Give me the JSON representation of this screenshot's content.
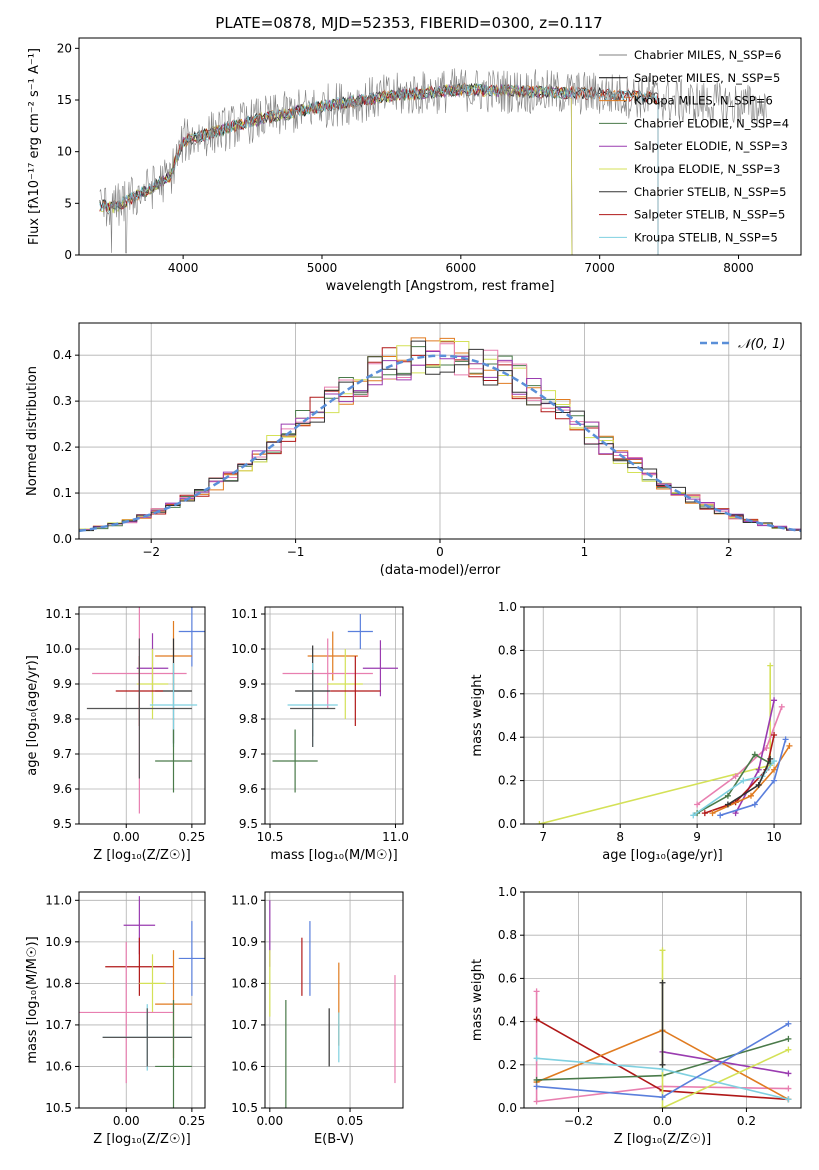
{
  "chart_data": [
    {
      "id": "spectrum",
      "type": "line",
      "title": "PLATE=0878, MJD=52353, FIBERID=0300, z=0.117",
      "xlabel": "wavelength [Angstrom, rest frame]",
      "ylabel": "Flux [fλ10⁻¹⁷ erg cm⁻² s⁻¹ A⁻¹]",
      "xlim": [
        3250,
        8450
      ],
      "ylim": [
        0,
        21
      ],
      "xticks": [
        "4000",
        "5000",
        "6000",
        "7000",
        "8000"
      ],
      "yticks": [
        "0",
        "5",
        "10",
        "15",
        "20"
      ],
      "legend_placement": "right",
      "continuum": {
        "x": [
          3400,
          3500,
          3700,
          3900,
          4000,
          4300,
          4500,
          5000,
          5500,
          6000,
          6500,
          7000,
          7400,
          7600,
          8000,
          8200
        ],
        "y": [
          4.8,
          4.6,
          6.0,
          7.5,
          11.0,
          12.2,
          13.0,
          14.4,
          15.4,
          16.0,
          15.8,
          15.6,
          15.2,
          14.8,
          14.5,
          14.3
        ]
      },
      "series": [
        {
          "name": "Chabrier MILES, N_SSP=6",
          "color": "#808080",
          "x_end": 8200
        },
        {
          "name": "Salpeter MILES, N_SSP=5",
          "color": "#000000",
          "x_end": 7420
        },
        {
          "name": "Kroupa MILES, N_SSP=6",
          "color": "#e07b20",
          "x_end": 7420
        },
        {
          "name": "Chabrier ELODIE, N_SSP=4",
          "color": "#4a7a4a",
          "x_end": 6800
        },
        {
          "name": "Salpeter ELODIE, N_SSP=3",
          "color": "#9a3cb0",
          "x_end": 6800
        },
        {
          "name": "Kroupa ELODIE, N_SSP=3",
          "color": "#d4e157",
          "x_end": 6800
        },
        {
          "name": "Chabrier STELIB, N_SSP=5",
          "color": "#333333",
          "x_end": 7420
        },
        {
          "name": "Salpeter STELIB, N_SSP=5",
          "color": "#b01818",
          "x_end": 7420
        },
        {
          "name": "Kroupa STELIB, N_SSP=5",
          "color": "#7fd0e0",
          "x_end": 7420
        }
      ]
    },
    {
      "id": "residuals",
      "type": "histogram",
      "xlabel": "(data-model)/error",
      "ylabel": "Normed distribution",
      "xlim": [
        -2.5,
        2.5
      ],
      "ylim": [
        0,
        0.47
      ],
      "xticks": [
        "−2",
        "−1",
        "0",
        "1",
        "2"
      ],
      "yticks": [
        "0.0",
        "0.1",
        "0.2",
        "0.3",
        "0.4"
      ],
      "gaussian_label": "𝒩(0, 1)",
      "legend_placement": "top-right",
      "bin_width": 0.1,
      "hist_colors": [
        "#4a7a4a",
        "#b01818",
        "#e07b20",
        "#d4e157",
        "#e87fb0",
        "#9a3cb0",
        "#333333"
      ]
    },
    {
      "id": "age-vs-z",
      "type": "scatter",
      "xlabel": "Z [log₁₀(Z/Z☉)]",
      "ylabel": "age  [log₁₀(age/yr)]",
      "xlim": [
        -0.18,
        0.3
      ],
      "ylim": [
        9.5,
        10.12
      ],
      "xticks": [
        "0.00",
        "0.25"
      ],
      "yticks": [
        "9.5",
        "9.6",
        "9.7",
        "9.8",
        "9.9",
        "10.0",
        "10.1"
      ],
      "points": [
        {
          "x": 0.25,
          "y": 10.05,
          "xerr": 0.05,
          "yerr": 0.1,
          "color": "#5a7fdc"
        },
        {
          "x": 0.18,
          "y": 9.98,
          "xerr": 0.07,
          "yerr": 0.1,
          "color": "#e07b20"
        },
        {
          "x": 0.1,
          "y": 9.945,
          "xerr": 0.06,
          "yerr": 0.1,
          "color": "#9a3cb0"
        },
        {
          "x": 0.05,
          "y": 9.93,
          "xerr": 0.18,
          "yerr": 0.4,
          "color": "#e87fb0"
        },
        {
          "x": 0.1,
          "y": 9.9,
          "xerr": 0.06,
          "yerr": 0.1,
          "color": "#d4e157"
        },
        {
          "x": 0.18,
          "y": 9.88,
          "xerr": 0.07,
          "yerr": 0.15,
          "color": "#333333"
        },
        {
          "x": 0.05,
          "y": 9.88,
          "xerr": 0.09,
          "yerr": 0.1,
          "color": "#b01818"
        },
        {
          "x": 0.18,
          "y": 9.84,
          "xerr": 0.09,
          "yerr": 0.12,
          "color": "#7fd0e0"
        },
        {
          "x": 0.05,
          "y": 9.83,
          "xerr": 0.2,
          "yerr": 0.2,
          "color": "#555555"
        },
        {
          "x": 0.18,
          "y": 9.68,
          "xerr": 0.07,
          "yerr": 0.09,
          "color": "#4a7a4a"
        }
      ]
    },
    {
      "id": "age-vs-mass",
      "type": "scatter",
      "xlabel": "mass [log₁₀(M/M☉)]",
      "ylabel": "",
      "xlim": [
        10.48,
        11.03
      ],
      "ylim": [
        9.5,
        10.12
      ],
      "xticks": [
        "10.5",
        "11.0"
      ],
      "yticks": [
        "9.5",
        "9.6",
        "9.7",
        "9.8",
        "9.9",
        "10.0",
        "10.1"
      ],
      "points": [
        {
          "x": 10.86,
          "y": 10.05,
          "xerr": 0.05,
          "yerr": 0.05,
          "color": "#5a7fdc"
        },
        {
          "x": 10.75,
          "y": 9.98,
          "xerr": 0.1,
          "yerr": 0.07,
          "color": "#e07b20"
        },
        {
          "x": 10.94,
          "y": 9.945,
          "xerr": 0.07,
          "yerr": 0.08,
          "color": "#9a3cb0"
        },
        {
          "x": 10.73,
          "y": 9.93,
          "xerr": 0.18,
          "yerr": 0.1,
          "color": "#e87fb0"
        },
        {
          "x": 10.8,
          "y": 9.9,
          "xerr": 0.07,
          "yerr": 0.1,
          "color": "#d4e157"
        },
        {
          "x": 10.67,
          "y": 9.88,
          "xerr": 0.07,
          "yerr": 0.13,
          "color": "#333333"
        },
        {
          "x": 10.84,
          "y": 9.88,
          "xerr": 0.1,
          "yerr": 0.1,
          "color": "#b01818"
        },
        {
          "x": 10.67,
          "y": 9.84,
          "xerr": 0.1,
          "yerr": 0.12,
          "color": "#7fd0e0"
        },
        {
          "x": 10.67,
          "y": 9.83,
          "xerr": 0.09,
          "yerr": 0.11,
          "color": "#555555"
        },
        {
          "x": 10.6,
          "y": 9.68,
          "xerr": 0.09,
          "yerr": 0.09,
          "color": "#4a7a4a"
        }
      ]
    },
    {
      "id": "mass-weight-vs-age",
      "type": "line",
      "xlabel": "age  [log₁₀(age/yr)]",
      "ylabel": "mass weight",
      "xlim": [
        6.75,
        10.35
      ],
      "ylim": [
        0,
        1.0
      ],
      "xticks": [
        "7",
        "8",
        "9",
        "10"
      ],
      "yticks": [
        "0.0",
        "0.2",
        "0.4",
        "0.6",
        "0.8",
        "1.0"
      ],
      "series": [
        {
          "color": "#d4e157",
          "x": [
            6.95,
            9.95,
            9.95
          ],
          "y": [
            0.0,
            0.27,
            0.73
          ]
        },
        {
          "color": "#e87fb0",
          "x": [
            9.0,
            9.5,
            9.9,
            10.1
          ],
          "y": [
            0.09,
            0.22,
            0.35,
            0.54
          ]
        },
        {
          "color": "#9a3cb0",
          "x": [
            9.5,
            9.8,
            10.0
          ],
          "y": [
            0.05,
            0.25,
            0.57
          ]
        },
        {
          "color": "#b01818",
          "x": [
            9.1,
            9.5,
            9.9,
            10.0
          ],
          "y": [
            0.05,
            0.1,
            0.25,
            0.41
          ]
        },
        {
          "color": "#e07b20",
          "x": [
            9.2,
            9.7,
            10.0,
            10.2
          ],
          "y": [
            0.05,
            0.13,
            0.25,
            0.36
          ]
        },
        {
          "color": "#4a7a4a",
          "x": [
            9.0,
            9.4,
            9.75,
            9.95
          ],
          "y": [
            0.05,
            0.13,
            0.32,
            0.28
          ]
        },
        {
          "color": "#5a7fdc",
          "x": [
            9.3,
            9.75,
            10.0,
            10.15
          ],
          "y": [
            0.04,
            0.09,
            0.2,
            0.39
          ]
        },
        {
          "color": "#7fd0e0",
          "x": [
            8.95,
            9.6,
            9.85,
            10.0
          ],
          "y": [
            0.04,
            0.2,
            0.22,
            0.29
          ]
        },
        {
          "color": "#333333",
          "x": [
            9.4,
            9.8,
            9.95
          ],
          "y": [
            0.09,
            0.18,
            0.3
          ]
        }
      ]
    },
    {
      "id": "mass-vs-z",
      "type": "scatter",
      "xlabel": "Z [log₁₀(Z/Z☉)]",
      "ylabel": "mass [log₁₀(M/M☉)]",
      "xlim": [
        -0.18,
        0.3
      ],
      "ylim": [
        10.5,
        11.02
      ],
      "xticks": [
        "0.00",
        "0.25"
      ],
      "yticks": [
        "10.5",
        "10.6",
        "10.7",
        "10.8",
        "10.9",
        "11.0"
      ],
      "points": [
        {
          "x": 0.05,
          "y": 10.94,
          "xerr": 0.06,
          "yerr": 0.07,
          "color": "#9a3cb0"
        },
        {
          "x": 0.25,
          "y": 10.86,
          "xerr": 0.05,
          "yerr": 0.09,
          "color": "#5a7fdc"
        },
        {
          "x": 0.05,
          "y": 10.84,
          "xerr": 0.13,
          "yerr": 0.07,
          "color": "#b01818"
        },
        {
          "x": 0.1,
          "y": 10.8,
          "xerr": 0.05,
          "yerr": 0.07,
          "color": "#d4e157"
        },
        {
          "x": 0.18,
          "y": 10.75,
          "xerr": 0.07,
          "yerr": 0.13,
          "color": "#e07b20"
        },
        {
          "x": 0.0,
          "y": 10.73,
          "xerr": 0.18,
          "yerr": 0.17,
          "color": "#e87fb0"
        },
        {
          "x": 0.08,
          "y": 10.67,
          "xerr": 0.17,
          "yerr": 0.08,
          "color": "#7fd0e0"
        },
        {
          "x": 0.08,
          "y": 10.67,
          "xerr": 0.17,
          "yerr": 0.07,
          "color": "#555555"
        },
        {
          "x": 0.18,
          "y": 10.6,
          "xerr": 0.07,
          "yerr": 0.16,
          "color": "#4a7a4a"
        }
      ]
    },
    {
      "id": "mass-vs-ebv",
      "type": "scatter",
      "xlabel": "E(B-V)",
      "ylabel": "",
      "xlim": [
        -0.003,
        0.083
      ],
      "ylim": [
        10.5,
        11.02
      ],
      "xticks": [
        "0.00",
        "0.05"
      ],
      "yticks": [
        "10.5",
        "10.6",
        "10.7",
        "10.8",
        "10.9",
        "11.0"
      ],
      "points": [
        {
          "x": 0.0,
          "y": 10.92,
          "yerr": 0.08,
          "color": "#9a3cb0"
        },
        {
          "x": 0.0,
          "y": 10.8,
          "yerr": 0.08,
          "color": "#d4e157"
        },
        {
          "x": 0.025,
          "y": 10.86,
          "yerr": 0.09,
          "color": "#5a7fdc"
        },
        {
          "x": 0.02,
          "y": 10.84,
          "yerr": 0.07,
          "color": "#b01818"
        },
        {
          "x": 0.043,
          "y": 10.75,
          "yerr": 0.1,
          "color": "#e07b20"
        },
        {
          "x": 0.078,
          "y": 10.69,
          "yerr": 0.13,
          "color": "#e87fb0"
        },
        {
          "x": 0.043,
          "y": 10.67,
          "yerr": 0.06,
          "color": "#7fd0e0"
        },
        {
          "x": 0.037,
          "y": 10.67,
          "yerr": 0.07,
          "color": "#333333"
        },
        {
          "x": 0.01,
          "y": 10.6,
          "yerr": 0.16,
          "color": "#4a7a4a"
        }
      ]
    },
    {
      "id": "mass-weight-vs-z",
      "type": "line",
      "xlabel": "Z [log₁₀(Z/Z☉)]",
      "ylabel": "mass weight",
      "xlim": [
        -0.33,
        0.33
      ],
      "ylim": [
        0,
        1.0
      ],
      "xticks": [
        "−0.2",
        "0.0",
        "0.2"
      ],
      "yticks": [
        "0.0",
        "0.2",
        "0.4",
        "0.6",
        "0.8",
        "1.0"
      ],
      "series": [
        {
          "color": "#e87fb0",
          "x": [
            -0.3,
            -0.3,
            0.0,
            0.3
          ],
          "y": [
            0.54,
            0.03,
            0.1,
            0.09
          ]
        },
        {
          "color": "#b01818",
          "x": [
            -0.3,
            0.0,
            0.3
          ],
          "y": [
            0.41,
            0.08,
            0.04
          ]
        },
        {
          "color": "#e07b20",
          "x": [
            -0.3,
            0.0,
            0.3
          ],
          "y": [
            0.12,
            0.36,
            0.04
          ]
        },
        {
          "color": "#4a7a4a",
          "x": [
            -0.3,
            0.0,
            0.3
          ],
          "y": [
            0.13,
            0.15,
            0.32
          ]
        },
        {
          "color": "#9a3cb0",
          "x": [
            0.0,
            0.3
          ],
          "y": [
            0.26,
            0.16
          ]
        },
        {
          "color": "#d4e157",
          "x": [
            0.0,
            0.0,
            0.3
          ],
          "y": [
            0.73,
            0.0,
            0.27
          ]
        },
        {
          "color": "#7fd0e0",
          "x": [
            -0.3,
            0.0,
            0.3
          ],
          "y": [
            0.23,
            0.18,
            0.04
          ]
        },
        {
          "color": "#5a7fdc",
          "x": [
            -0.3,
            0.0,
            0.3
          ],
          "y": [
            0.1,
            0.05,
            0.39
          ]
        },
        {
          "color": "#333333",
          "x": [
            0.0,
            0.0
          ],
          "y": [
            0.58,
            0.2
          ]
        }
      ]
    }
  ]
}
